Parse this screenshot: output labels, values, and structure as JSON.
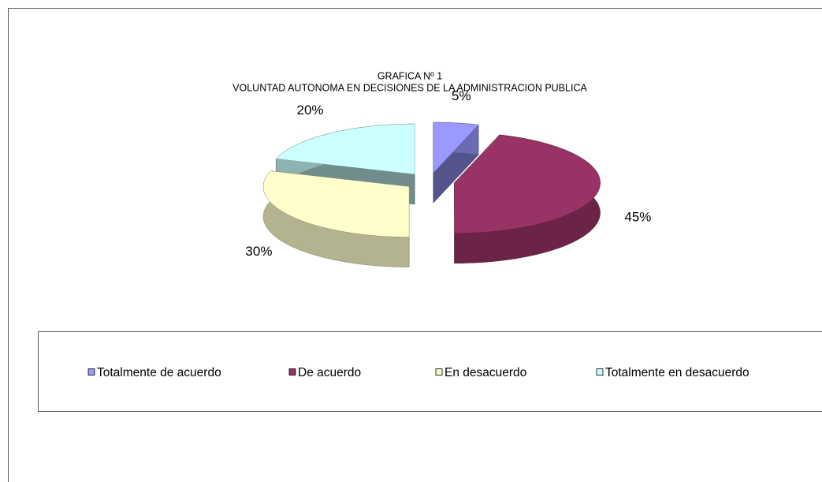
{
  "chart_data": {
    "type": "pie",
    "title": [
      "GRAFICA Nº 1",
      "VOLUNTAD AUTONOMA EN DECISIONES DE LA ADMINISTRACION PUBLICA"
    ],
    "categories": [
      "Totalmente de acuerdo",
      "De acuerdo",
      "En desacuerdo",
      "Totalmente en desacuerdo"
    ],
    "values": [
      5,
      45,
      30,
      20
    ],
    "value_labels": [
      "5%",
      "45%",
      "30%",
      "20%"
    ],
    "colors": [
      "#9999ff",
      "#993366",
      "#ffffcc",
      "#ccffff"
    ],
    "legend": "bottom"
  }
}
